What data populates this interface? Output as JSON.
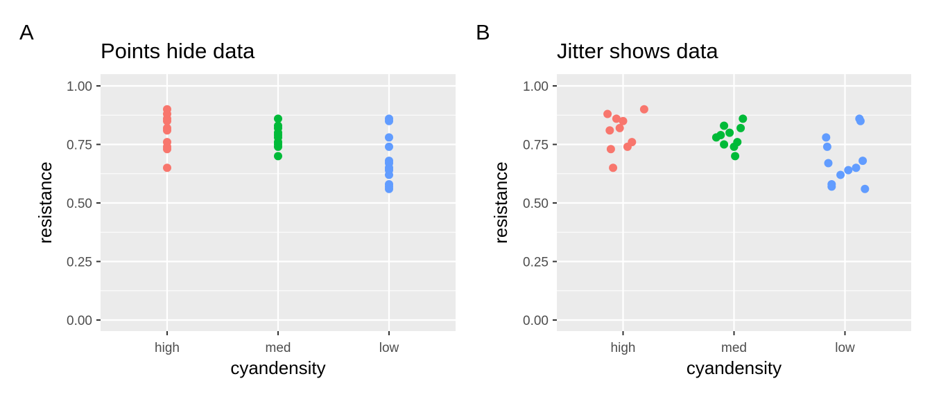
{
  "chart_data": [
    {
      "tag": "A",
      "type": "scatter",
      "title": "Points hide data",
      "xlabel": "cyandensity",
      "ylabel": "resistance",
      "categories": [
        "high",
        "med",
        "low"
      ],
      "yticks": [
        "0.00",
        "0.25",
        "0.50",
        "0.75",
        "1.00"
      ],
      "ylim": [
        0,
        1
      ],
      "grid": true,
      "colors": {
        "high": "#F8766D",
        "med": "#00BA38",
        "low": "#619CFF"
      },
      "series": [
        {
          "category": "high",
          "y": [
            0.88,
            0.86,
            0.85,
            0.9,
            0.81,
            0.82,
            0.76,
            0.74,
            0.73,
            0.65
          ]
        },
        {
          "category": "med",
          "y": [
            0.86,
            0.82,
            0.83,
            0.79,
            0.78,
            0.8,
            0.76,
            0.75,
            0.74,
            0.7
          ]
        },
        {
          "category": "low",
          "y": [
            0.86,
            0.85,
            0.78,
            0.74,
            0.67,
            0.68,
            0.65,
            0.64,
            0.62,
            0.58,
            0.57,
            0.56
          ]
        }
      ]
    },
    {
      "tag": "B",
      "type": "scatter",
      "title": "Jitter shows data",
      "xlabel": "cyandensity",
      "ylabel": "resistance",
      "categories": [
        "high",
        "med",
        "low"
      ],
      "yticks": [
        "0.00",
        "0.25",
        "0.50",
        "0.75",
        "1.00"
      ],
      "ylim": [
        0,
        1
      ],
      "grid": true,
      "colors": {
        "high": "#F8766D",
        "med": "#00BA38",
        "low": "#619CFF"
      },
      "series": [
        {
          "category": "high",
          "x": [
            0.86,
            0.94,
            1.0,
            1.19,
            0.88,
            0.97,
            1.08,
            1.04,
            0.89,
            0.91
          ],
          "y": [
            0.88,
            0.86,
            0.85,
            0.9,
            0.81,
            0.82,
            0.76,
            0.74,
            0.73,
            0.65
          ]
        },
        {
          "category": "med",
          "x": [
            2.08,
            2.06,
            1.91,
            1.88,
            1.84,
            1.96,
            2.03,
            1.91,
            2.0,
            2.01
          ],
          "y": [
            0.86,
            0.82,
            0.83,
            0.79,
            0.78,
            0.8,
            0.76,
            0.75,
            0.74,
            0.7
          ]
        },
        {
          "category": "low",
          "x": [
            3.13,
            3.14,
            2.83,
            2.84,
            2.85,
            3.16,
            3.1,
            3.03,
            2.96,
            2.88,
            2.88,
            3.18
          ],
          "y": [
            0.86,
            0.85,
            0.78,
            0.74,
            0.67,
            0.68,
            0.65,
            0.64,
            0.62,
            0.58,
            0.57,
            0.56
          ]
        }
      ]
    }
  ]
}
